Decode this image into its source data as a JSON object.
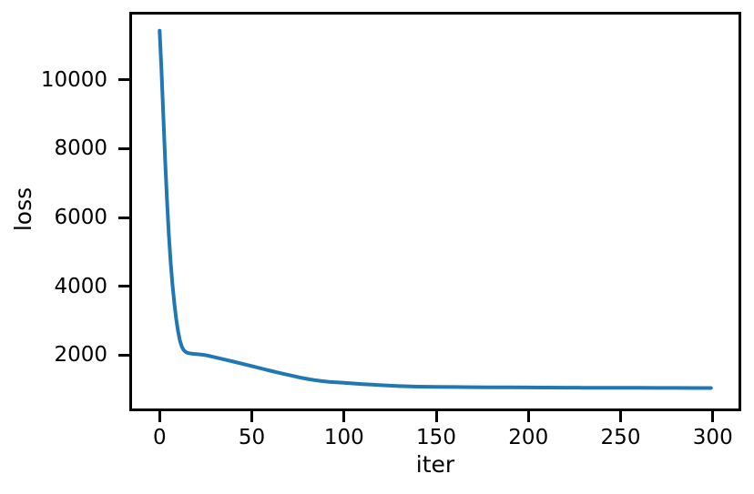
{
  "figure": {
    "background_color": "#ffffff",
    "spine_color": "#000000",
    "tick_color": "#000000",
    "text_color": "#000000"
  },
  "chart_data": {
    "type": "line",
    "title": "",
    "xlabel": "iter",
    "ylabel": "loss",
    "xlim": [
      -14.95,
      313.95
    ],
    "ylim": [
      450,
      11900
    ],
    "xticks": [
      0,
      50,
      100,
      150,
      200,
      250,
      300
    ],
    "yticks": [
      2000,
      4000,
      6000,
      8000,
      10000
    ],
    "grid": false,
    "legend_position": "none",
    "series": [
      {
        "name": "loss",
        "color": "#1f77b4",
        "line_width": 4,
        "x": [
          0,
          1,
          2,
          3,
          4,
          5,
          6,
          7,
          8,
          9,
          10,
          11,
          12,
          13,
          14,
          15,
          16,
          18,
          20,
          22,
          24,
          26,
          28,
          30,
          33,
          36,
          40,
          44,
          48,
          52,
          56,
          60,
          64,
          68,
          72,
          76,
          80,
          84,
          88,
          92,
          96,
          100,
          105,
          110,
          115,
          120,
          125,
          130,
          140,
          150,
          160,
          170,
          180,
          190,
          200,
          210,
          220,
          230,
          240,
          250,
          260,
          270,
          280,
          290,
          299
        ],
        "y": [
          11430,
          10300,
          9000,
          7700,
          6500,
          5500,
          4700,
          4050,
          3500,
          3050,
          2700,
          2430,
          2250,
          2150,
          2100,
          2070,
          2055,
          2040,
          2030,
          2020,
          2008,
          1990,
          1962,
          1938,
          1900,
          1862,
          1812,
          1762,
          1708,
          1655,
          1600,
          1548,
          1498,
          1448,
          1398,
          1352,
          1310,
          1275,
          1246,
          1224,
          1208,
          1195,
          1178,
          1160,
          1143,
          1128,
          1113,
          1100,
          1085,
          1078,
          1073,
          1069,
          1066,
          1063,
          1060,
          1058,
          1056,
          1054,
          1052,
          1050,
          1049,
          1048,
          1047,
          1046,
          1045
        ]
      }
    ]
  }
}
